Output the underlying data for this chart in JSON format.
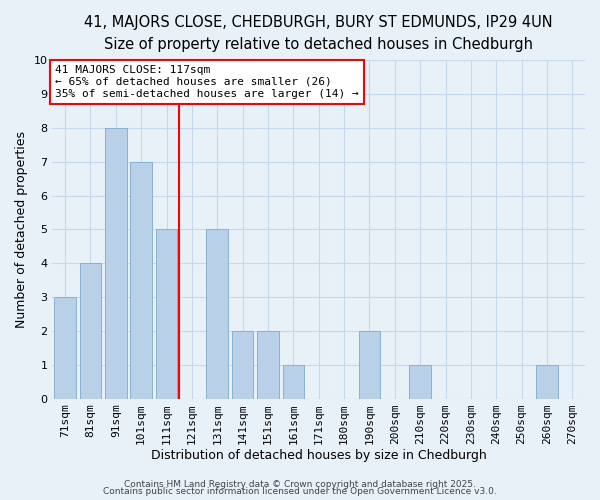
{
  "title": "41, MAJORS CLOSE, CHEDBURGH, BURY ST EDMUNDS, IP29 4UN",
  "subtitle": "Size of property relative to detached houses in Chedburgh",
  "xlabel": "Distribution of detached houses by size in Chedburgh",
  "ylabel": "Number of detached properties",
  "bar_labels": [
    "71sqm",
    "81sqm",
    "91sqm",
    "101sqm",
    "111sqm",
    "121sqm",
    "131sqm",
    "141sqm",
    "151sqm",
    "161sqm",
    "171sqm",
    "180sqm",
    "190sqm",
    "200sqm",
    "210sqm",
    "220sqm",
    "230sqm",
    "240sqm",
    "250sqm",
    "260sqm",
    "270sqm"
  ],
  "bar_values": [
    3,
    4,
    8,
    7,
    5,
    0,
    5,
    2,
    2,
    1,
    0,
    0,
    2,
    0,
    1,
    0,
    0,
    0,
    0,
    1,
    0
  ],
  "bar_color": "#b8d0e8",
  "bar_edge_color": "#8ab0d0",
  "vline_x_idx": 4.5,
  "vline_color": "red",
  "annotation_text": "41 MAJORS CLOSE: 117sqm\n← 65% of detached houses are smaller (26)\n35% of semi-detached houses are larger (14) →",
  "annotation_box_facecolor": "white",
  "annotation_box_edgecolor": "red",
  "ylim": [
    0,
    10
  ],
  "yticks": [
    0,
    1,
    2,
    3,
    4,
    5,
    6,
    7,
    8,
    9,
    10
  ],
  "grid_color": "#c8d8ec",
  "footer1": "Contains HM Land Registry data © Crown copyright and database right 2025.",
  "footer2": "Contains public sector information licensed under the Open Government Licence v3.0.",
  "title_fontsize": 10.5,
  "subtitle_fontsize": 9.5,
  "xlabel_fontsize": 9,
  "ylabel_fontsize": 9,
  "tick_fontsize": 8,
  "annotation_fontsize": 8,
  "footer_fontsize": 6.5,
  "bg_color": "#e8f0f8"
}
